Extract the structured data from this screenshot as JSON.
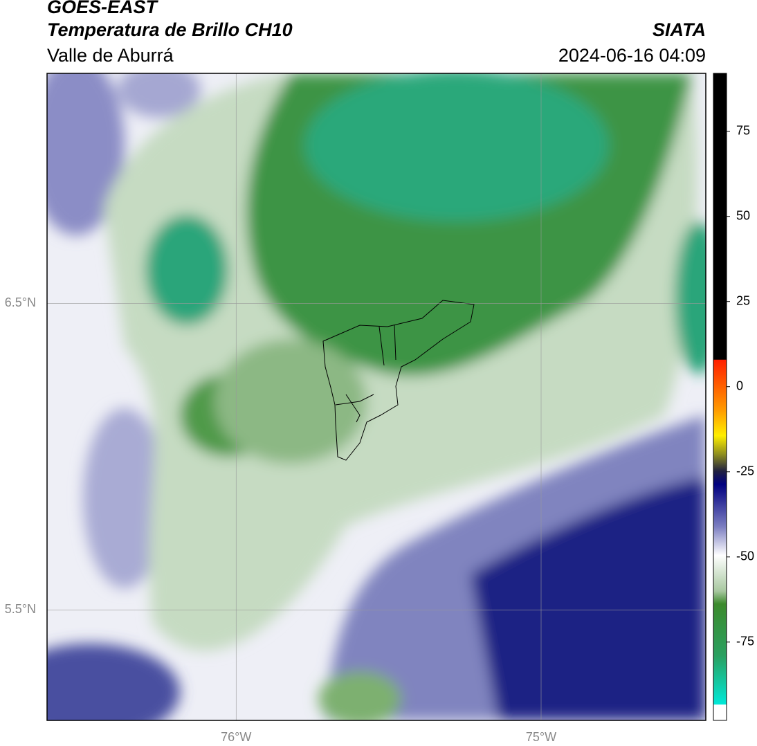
{
  "header": {
    "title": "GOES-EAST",
    "subtitle": "Temperatura de Brillo CH10",
    "region": "Valle de Aburrá",
    "source": "SIATA",
    "datetime": "2024-06-16 04:09"
  },
  "map": {
    "xlim": [
      -76.62,
      -74.46
    ],
    "ylim": [
      5.14,
      7.25
    ],
    "xticks": [
      {
        "value": -76,
        "label": "76°W"
      },
      {
        "value": -75,
        "label": "75°W"
      }
    ],
    "yticks": [
      {
        "value": 6.5,
        "label": "6.5°N"
      },
      {
        "value": 5.5,
        "label": "5.5°N"
      }
    ]
  },
  "colorbar": {
    "lim": [
      -98,
      92
    ],
    "ticks": [
      75,
      50,
      25,
      0,
      -25,
      -50,
      -75
    ]
  }
}
